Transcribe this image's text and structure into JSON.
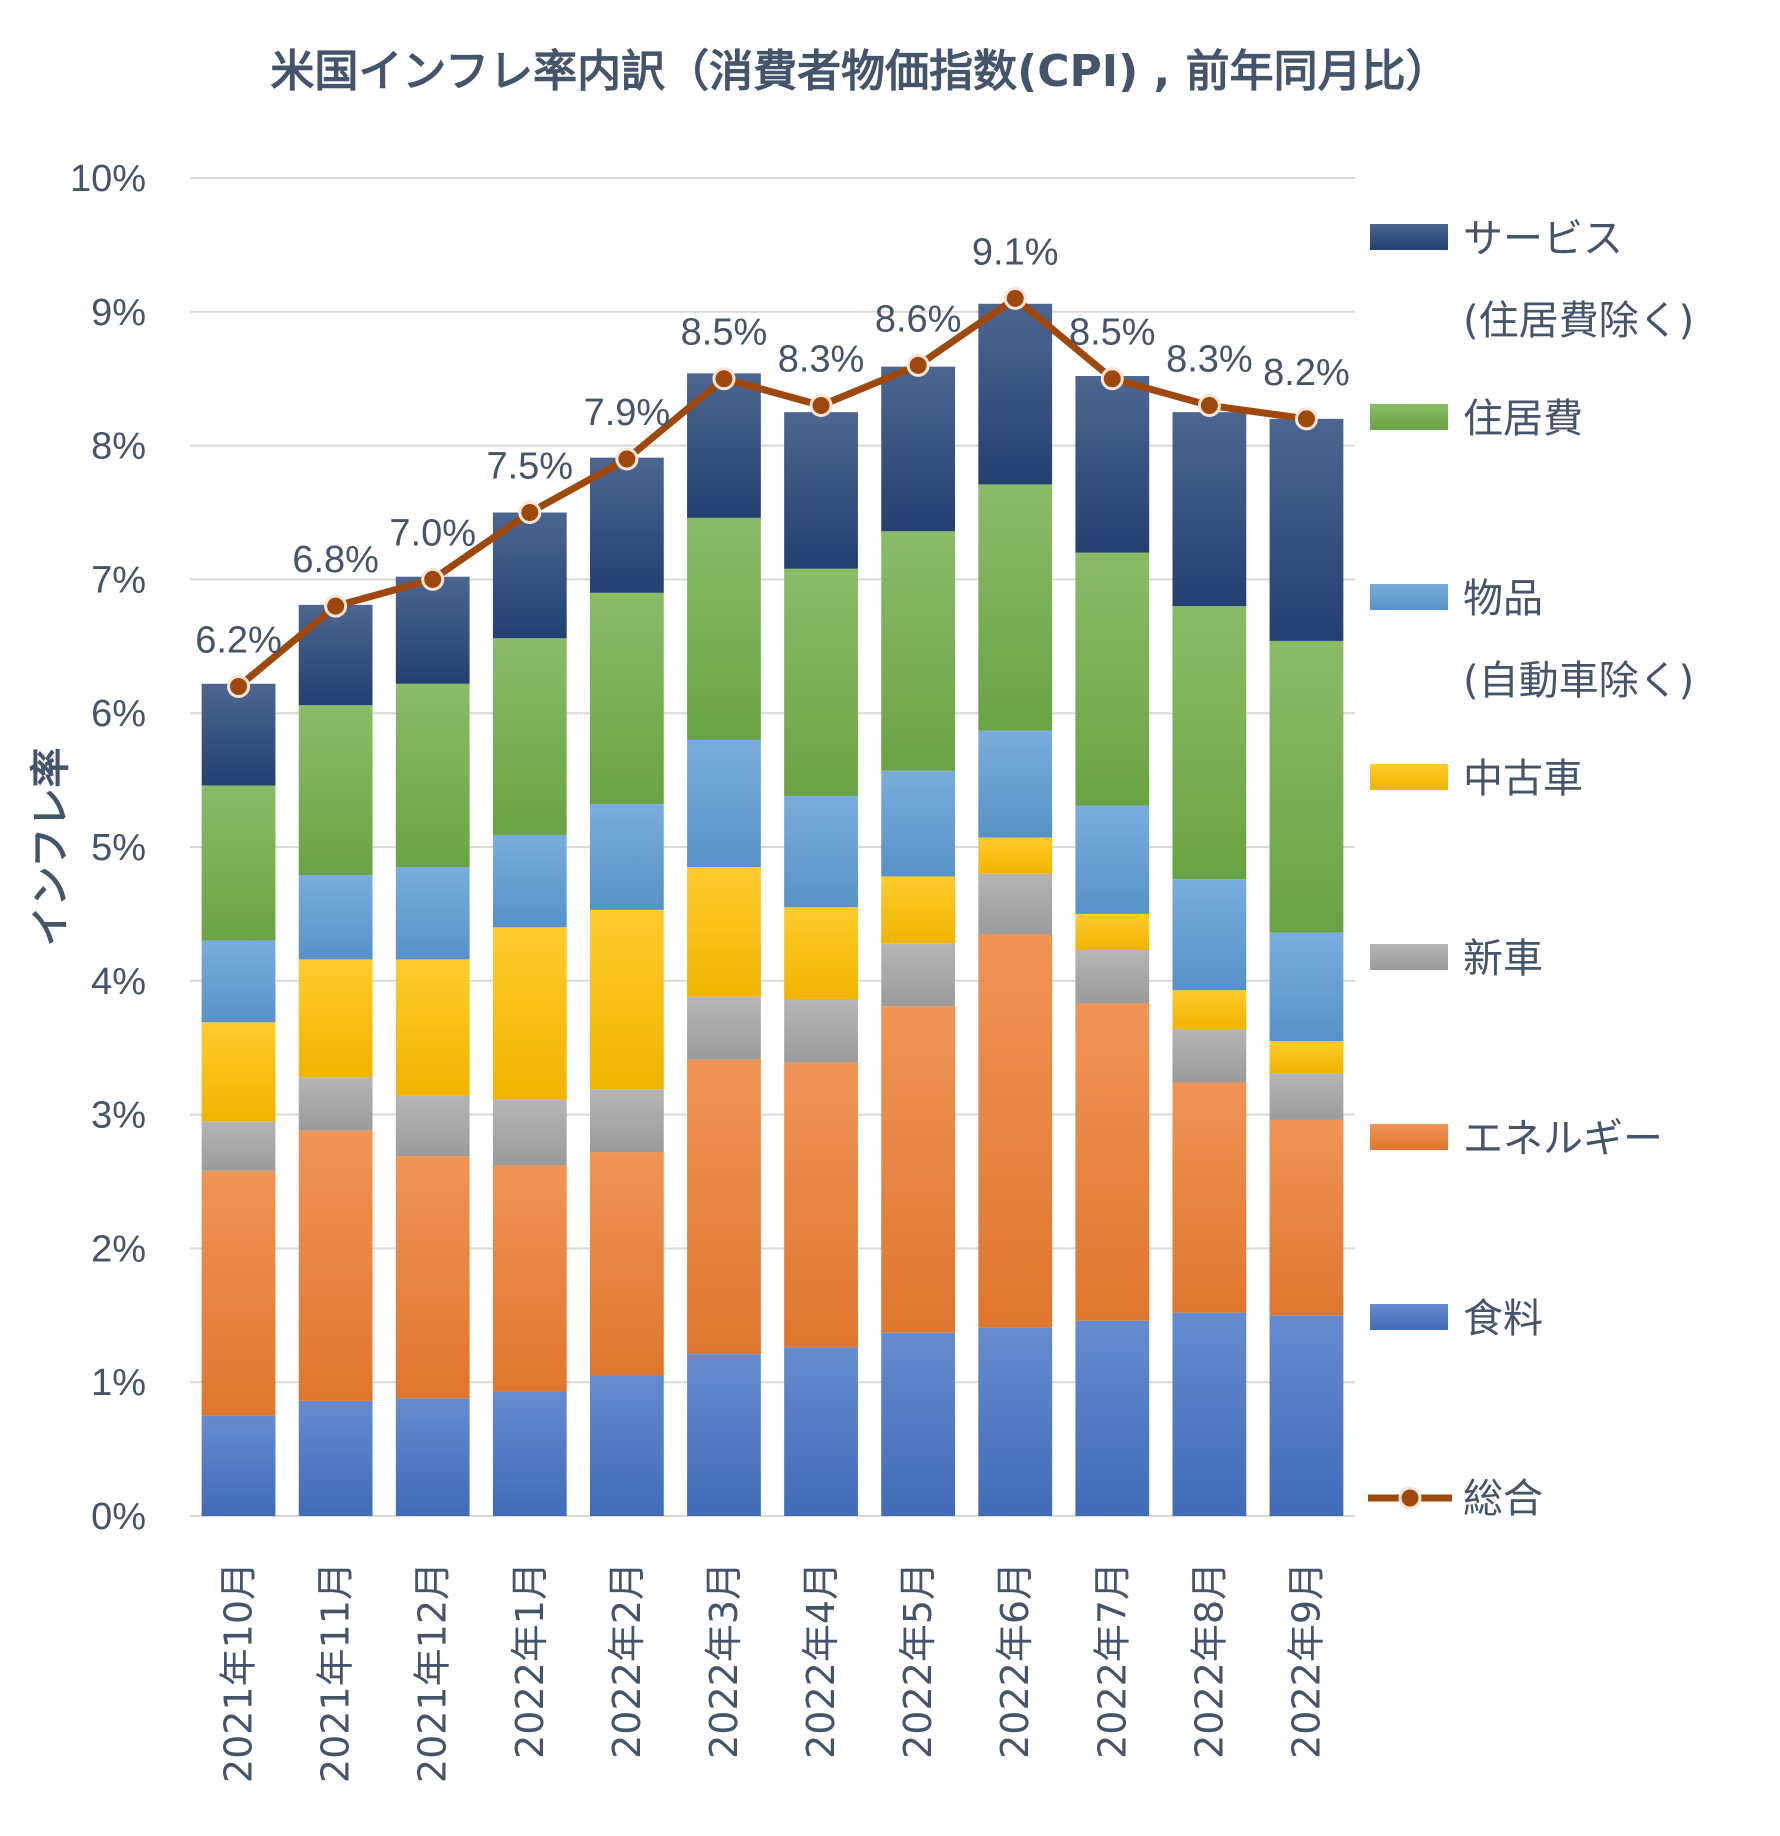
{
  "chart_data": {
    "type": "bar",
    "stacked": true,
    "title": "米国インフレ率内訳（消費者物価指数(CPI) , 前年同月比）",
    "ylabel": "インフレ率",
    "ylim": [
      0,
      10
    ],
    "yticks": [
      "0%",
      "1%",
      "2%",
      "3%",
      "4%",
      "5%",
      "6%",
      "7%",
      "8%",
      "9%",
      "10%"
    ],
    "grid": true,
    "legend_position": "right",
    "categories": [
      "2021年10月",
      "2021年11月",
      "2021年12月",
      "2022年1月",
      "2022年2月",
      "2022年3月",
      "2022年4月",
      "2022年5月",
      "2022年6月",
      "2022年7月",
      "2022年8月",
      "2022年9月"
    ],
    "series": [
      {
        "name": "食料",
        "color": "#4472c4",
        "values": [
          0.75,
          0.86,
          0.88,
          0.93,
          1.05,
          1.21,
          1.26,
          1.37,
          1.41,
          1.46,
          1.52,
          1.5
        ]
      },
      {
        "name": "エネルギー",
        "color": "#ed7d31",
        "values": [
          1.83,
          2.02,
          1.81,
          1.69,
          1.67,
          2.2,
          2.13,
          2.44,
          2.94,
          2.37,
          1.72,
          1.46
        ]
      },
      {
        "name": "新車",
        "color": "#a5a5a5",
        "values": [
          0.37,
          0.4,
          0.45,
          0.49,
          0.47,
          0.47,
          0.47,
          0.47,
          0.45,
          0.4,
          0.4,
          0.35
        ]
      },
      {
        "name": "中古車",
        "color": "#ffc000",
        "values": [
          0.74,
          0.88,
          1.02,
          1.29,
          1.34,
          0.97,
          0.69,
          0.5,
          0.27,
          0.27,
          0.29,
          0.24
        ]
      },
      {
        "name": "物品\n(自動車除く)",
        "color": "#5b9bd5",
        "values": [
          0.61,
          0.63,
          0.69,
          0.69,
          0.79,
          0.95,
          0.83,
          0.79,
          0.8,
          0.81,
          0.83,
          0.81
        ]
      },
      {
        "name": "住居費",
        "color": "#70ad47",
        "values": [
          1.16,
          1.27,
          1.37,
          1.47,
          1.58,
          1.66,
          1.7,
          1.79,
          1.84,
          1.89,
          2.04,
          2.18
        ]
      },
      {
        "name": "サービス\n(住居費除く)",
        "color": "#264478",
        "values": [
          0.76,
          0.75,
          0.8,
          0.94,
          1.01,
          1.08,
          1.17,
          1.23,
          1.35,
          1.32,
          1.45,
          1.66
        ]
      }
    ],
    "total": {
      "name": "総合",
      "color": "#9e480e",
      "values": [
        6.2,
        6.8,
        7.0,
        7.5,
        7.9,
        8.5,
        8.3,
        8.6,
        9.1,
        8.5,
        8.3,
        8.2
      ],
      "labels": [
        "6.2%",
        "6.8%",
        "7.0%",
        "7.5%",
        "7.9%",
        "8.5%",
        "8.3%",
        "8.6%",
        "9.1%",
        "8.5%",
        "8.3%",
        "8.2%"
      ]
    }
  }
}
